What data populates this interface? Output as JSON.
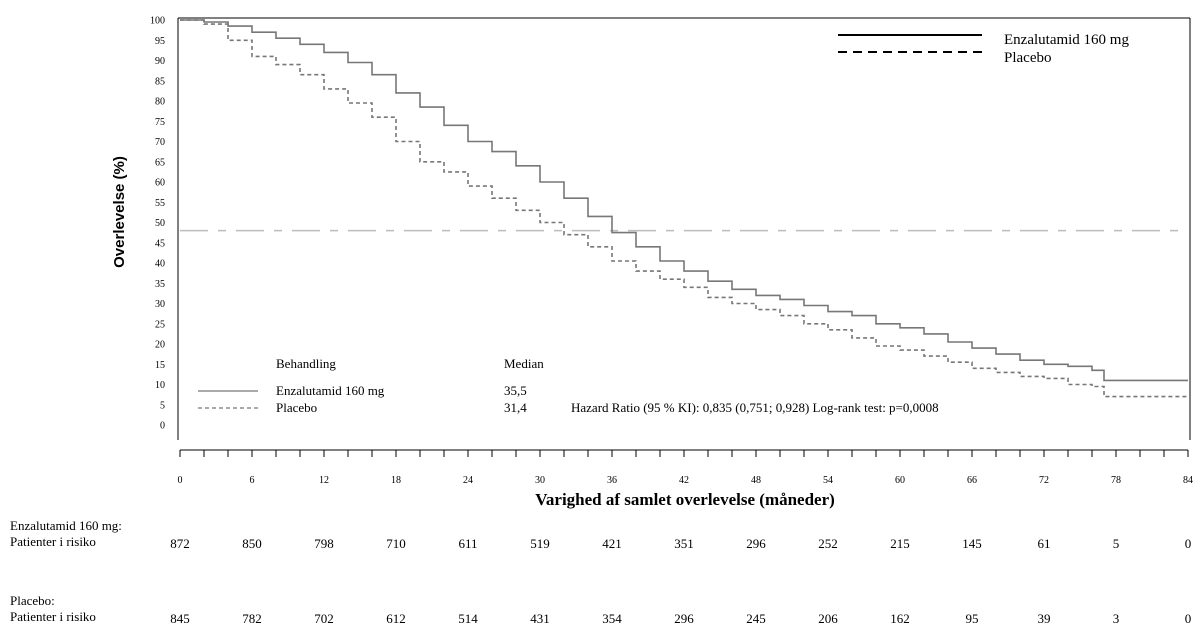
{
  "chart_data": {
    "type": "line",
    "xlabel": "Varighed af samlet overlevelse (måneder)",
    "ylabel": "Overlevelse (%)",
    "xlim": [
      0,
      84
    ],
    "ylim": [
      0,
      100
    ],
    "x_ticks": [
      0,
      6,
      12,
      18,
      24,
      30,
      36,
      42,
      48,
      54,
      60,
      66,
      72,
      78,
      84
    ],
    "y_ticks": [
      0,
      5,
      10,
      15,
      20,
      25,
      30,
      35,
      40,
      45,
      50,
      55,
      60,
      65,
      70,
      75,
      80,
      85,
      90,
      95,
      100
    ],
    "reference_line_y": 48,
    "legend": {
      "placement": "top-right",
      "entries": [
        "Enzalutamid 160 mg",
        "Placebo"
      ]
    },
    "series": [
      {
        "name": "Enzalutamid 160 mg",
        "style": "solid",
        "color": "#777777",
        "points": [
          [
            0,
            100
          ],
          [
            2,
            99.5
          ],
          [
            4,
            98.5
          ],
          [
            6,
            97
          ],
          [
            8,
            95.5
          ],
          [
            10,
            94
          ],
          [
            12,
            92
          ],
          [
            14,
            89.5
          ],
          [
            16,
            86.5
          ],
          [
            18,
            82
          ],
          [
            20,
            78.5
          ],
          [
            22,
            74
          ],
          [
            24,
            70
          ],
          [
            26,
            67.5
          ],
          [
            28,
            64
          ],
          [
            30,
            60
          ],
          [
            32,
            56
          ],
          [
            34,
            51.5
          ],
          [
            36,
            47.5
          ],
          [
            38,
            44
          ],
          [
            40,
            40.5
          ],
          [
            42,
            38
          ],
          [
            44,
            35.5
          ],
          [
            46,
            33.5
          ],
          [
            48,
            32
          ],
          [
            50,
            31
          ],
          [
            52,
            29.5
          ],
          [
            54,
            28
          ],
          [
            56,
            27
          ],
          [
            58,
            25
          ],
          [
            60,
            24
          ],
          [
            62,
            22.5
          ],
          [
            64,
            20.5
          ],
          [
            66,
            19
          ],
          [
            68,
            17.5
          ],
          [
            70,
            16
          ],
          [
            72,
            15
          ],
          [
            74,
            14.5
          ],
          [
            76,
            13.5
          ],
          [
            77,
            11
          ],
          [
            78,
            11
          ],
          [
            84,
            11
          ]
        ]
      },
      {
        "name": "Placebo",
        "style": "dashed",
        "color": "#777777",
        "points": [
          [
            0,
            100
          ],
          [
            2,
            99
          ],
          [
            4,
            95
          ],
          [
            6,
            91
          ],
          [
            8,
            89
          ],
          [
            10,
            86.5
          ],
          [
            12,
            83
          ],
          [
            14,
            79.5
          ],
          [
            16,
            76
          ],
          [
            18,
            70
          ],
          [
            20,
            65
          ],
          [
            22,
            62.5
          ],
          [
            24,
            59
          ],
          [
            26,
            56
          ],
          [
            28,
            53
          ],
          [
            30,
            50
          ],
          [
            32,
            47
          ],
          [
            34,
            44
          ],
          [
            36,
            40.5
          ],
          [
            38,
            38
          ],
          [
            40,
            36
          ],
          [
            42,
            34
          ],
          [
            44,
            31.5
          ],
          [
            46,
            30
          ],
          [
            48,
            28.5
          ],
          [
            50,
            27
          ],
          [
            52,
            25
          ],
          [
            54,
            23.5
          ],
          [
            56,
            21.5
          ],
          [
            58,
            19.5
          ],
          [
            60,
            18.5
          ],
          [
            62,
            17
          ],
          [
            64,
            15.5
          ],
          [
            66,
            14
          ],
          [
            68,
            13
          ],
          [
            70,
            12
          ],
          [
            72,
            11.5
          ],
          [
            74,
            10
          ],
          [
            76,
            9.5
          ],
          [
            77,
            7
          ],
          [
            78,
            7
          ],
          [
            84,
            7
          ]
        ]
      }
    ],
    "inner_legend": {
      "header_treatment": "Behandling",
      "header_median": "Median",
      "rows": [
        {
          "label": "Enzalutamid 160 mg",
          "median": "35,5"
        },
        {
          "label": "Placebo",
          "median": "31,4"
        }
      ],
      "annotation": "Hazard Ratio (95 % KI): 0,835 (0,751; 0,928) Log-rank test: p=0,0008"
    },
    "risk_table": {
      "rows": [
        {
          "group": "Enzalutamid 160 mg:",
          "sublabel": "Patienter i risiko",
          "values": [
            872,
            850,
            798,
            710,
            611,
            519,
            421,
            351,
            296,
            252,
            215,
            145,
            61,
            5,
            0
          ]
        },
        {
          "group": "Placebo:",
          "sublabel": "Patienter i risiko",
          "values": [
            845,
            782,
            702,
            612,
            514,
            431,
            354,
            296,
            245,
            206,
            162,
            95,
            39,
            3,
            0
          ]
        }
      ]
    }
  }
}
